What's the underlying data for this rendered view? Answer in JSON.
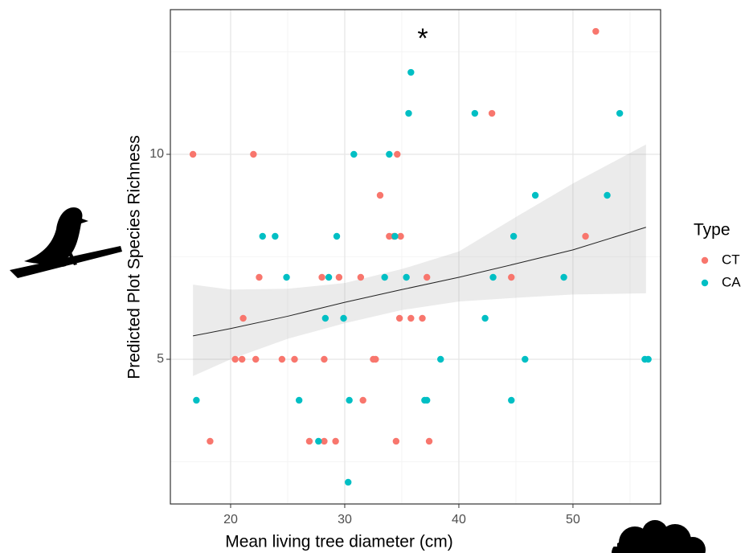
{
  "chart_data": {
    "type": "scatter",
    "annotation": "*",
    "xlabel": "Mean living tree diameter (cm)",
    "ylabel": "Predicted Plot Species Richness",
    "legend_title": "Type",
    "xlim": [
      14.72,
      57.68
    ],
    "ylim": [
      1.47,
      13.53
    ],
    "xticks": [
      20,
      30,
      40,
      50
    ],
    "yticks": [
      5,
      10
    ],
    "x_minor_grid": [
      25,
      35,
      45,
      55
    ],
    "y_minor_grid": [
      2.5,
      7.5,
      12.5
    ],
    "grid": true,
    "series": [
      {
        "name": "CT",
        "color": "#F8766D",
        "x": [
          16.7,
          22.0,
          18.2,
          21.1,
          22.5,
          20.4,
          21.0,
          22.2,
          24.5,
          25.6,
          28.2,
          28.0,
          29.5,
          31.4,
          26.9,
          28.2,
          29.2,
          31.6,
          32.5,
          32.7,
          33.1,
          33.9,
          34.3,
          34.9,
          34.6,
          34.8,
          35.8,
          36.8,
          37.2,
          34.5,
          37.4,
          42.9,
          44.6,
          51.1,
          52.0
        ],
        "values": [
          10,
          10,
          3,
          6,
          7,
          5,
          5,
          5,
          5,
          5,
          5,
          7,
          7,
          7,
          3,
          3,
          3,
          4,
          5,
          5,
          9,
          8,
          8,
          8,
          10,
          6,
          6,
          6,
          7,
          3,
          3,
          11,
          7,
          8,
          13
        ]
      },
      {
        "name": "CA",
        "color": "#00BFC4",
        "x": [
          17.0,
          22.8,
          23.9,
          24.9,
          26.0,
          27.7,
          28.3,
          28.6,
          29.3,
          29.9,
          30.8,
          30.4,
          30.3,
          33.5,
          33.9,
          34.4,
          35.4,
          35.6,
          35.8,
          37.0,
          37.2,
          38.4,
          41.4,
          42.3,
          43.0,
          44.6,
          44.8,
          45.8,
          46.7,
          49.2,
          53.0,
          54.1,
          56.3,
          56.6
        ],
        "values": [
          4,
          8,
          8,
          7,
          4,
          3,
          6,
          7,
          8,
          6,
          10,
          4,
          2,
          7,
          10,
          8,
          7,
          11,
          12,
          4,
          4,
          5,
          11,
          6,
          7,
          4,
          8,
          5,
          9,
          7,
          9,
          11,
          5,
          5
        ]
      }
    ],
    "fit": {
      "x": [
        16.7,
        20,
        25,
        30,
        35,
        40,
        45,
        50,
        56.4
      ],
      "y": [
        5.57,
        5.75,
        6.05,
        6.39,
        6.7,
        7.0,
        7.33,
        7.67,
        8.22
      ],
      "lower": [
        4.59,
        5.0,
        5.5,
        5.88,
        6.2,
        6.41,
        6.5,
        6.58,
        6.61
      ],
      "upper": [
        6.82,
        6.7,
        6.72,
        6.86,
        7.2,
        7.63,
        8.47,
        9.29,
        10.24
      ]
    }
  }
}
